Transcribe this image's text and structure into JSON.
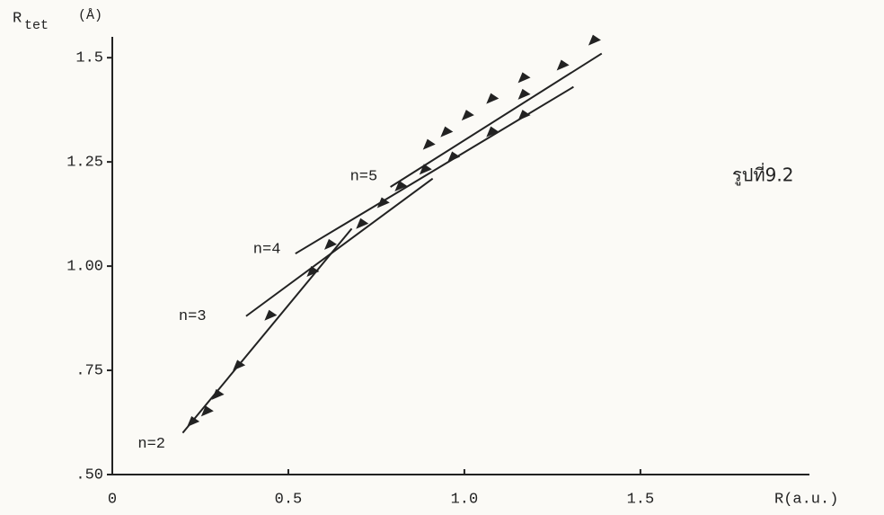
{
  "chart_data": {
    "type": "scatter",
    "y_label_main": "R",
    "y_label_sub": "tet",
    "y_label_unit": "(Å)",
    "x_label": "R(a.u.)",
    "annotation": "รูปที่9.2",
    "xlim": [
      0,
      1.98
    ],
    "ylim": [
      0.5,
      1.55
    ],
    "xticks": [
      0,
      0.5,
      {
        "value": 1.0,
        "label": "1.0"
      },
      1.5
    ],
    "yticks": [
      {
        "value": 0.5,
        "label": ".50"
      },
      {
        "value": 0.75,
        "label": ".75"
      },
      {
        "value": 1.0,
        "label": "1.00"
      },
      1.25,
      1.5
    ],
    "grid": false,
    "series": [
      {
        "name": "n=2",
        "color": "#222222",
        "x": [
          0.23,
          0.27,
          0.3,
          0.36,
          0.57,
          0.62
        ],
        "values": [
          0.625,
          0.65,
          0.69,
          0.76,
          0.985,
          1.05
        ],
        "fit": {
          "x": [
            0.2,
            0.68
          ],
          "values": [
            0.6,
            1.09
          ]
        }
      },
      {
        "name": "n=3",
        "color": "#222222",
        "x": [
          0.45,
          0.71,
          0.77,
          0.82,
          0.89,
          0.97,
          1.08,
          1.17
        ],
        "values": [
          0.88,
          1.1,
          1.15,
          1.19,
          1.23,
          1.26,
          1.32,
          1.36
        ],
        "fit": {
          "x": [
            0.38,
            0.91
          ],
          "values": [
            0.88,
            1.21
          ]
        }
      },
      {
        "name": "n=4",
        "color": "#222222",
        "x": [
          1.17
        ],
        "values": [
          1.41
        ],
        "fit": {
          "x": [
            0.52,
            1.31
          ],
          "values": [
            1.03,
            1.43
          ]
        }
      },
      {
        "name": "n=5",
        "color": "#222222",
        "x": [
          0.9,
          0.95,
          1.01,
          1.08,
          1.17,
          1.28,
          1.37
        ],
        "values": [
          1.29,
          1.32,
          1.36,
          1.4,
          1.45,
          1.48,
          1.54
        ],
        "fit": {
          "x": [
            0.79,
            1.39
          ],
          "values": [
            1.19,
            1.51
          ]
        }
      }
    ]
  }
}
